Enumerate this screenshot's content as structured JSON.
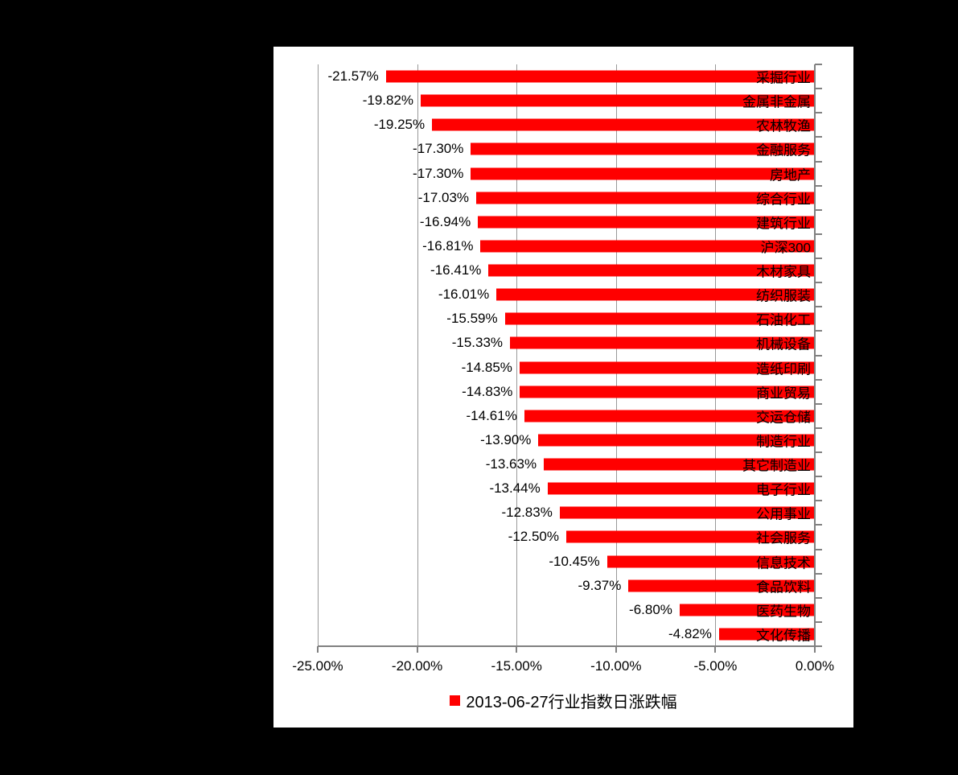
{
  "chart_data": {
    "type": "bar",
    "orientation": "horizontal",
    "title": "",
    "legend_label": "2013-06-27行业指数日涨跌幅",
    "legend_position": "bottom",
    "grid": "vertical gridlines every 5%",
    "xlim": [
      -25,
      0
    ],
    "x_tick_labels": [
      "-25.00%",
      "-20.00%",
      "-15.00%",
      "-10.00%",
      "-5.00%",
      "0.00%"
    ],
    "categories": [
      "采掘行业",
      "金属非金属",
      "农林牧渔",
      "金融服务",
      "房地产",
      "综合行业",
      "建筑行业",
      "沪深300",
      "木材家具",
      "纺织服装",
      "石油化工",
      "机械设备",
      "造纸印刷",
      "商业贸易",
      "交运仓储",
      "制造行业",
      "其它制造业",
      "电子行业",
      "公用事业",
      "社会服务",
      "信息技术",
      "食品饮料",
      "医药生物",
      "文化传播"
    ],
    "values": [
      -21.57,
      -19.82,
      -19.25,
      -17.3,
      -17.3,
      -17.03,
      -16.94,
      -16.81,
      -16.41,
      -16.01,
      -15.59,
      -15.33,
      -14.85,
      -14.83,
      -14.61,
      -13.9,
      -13.63,
      -13.44,
      -12.83,
      -12.5,
      -10.45,
      -9.37,
      -6.8,
      -4.82
    ],
    "value_labels": [
      "-21.57%",
      "-19.82%",
      "-19.25%",
      "-17.30%",
      "-17.30%",
      "-17.03%",
      "-16.94%",
      "-16.81%",
      "-16.41%",
      "-16.01%",
      "-15.59%",
      "-15.33%",
      "-14.85%",
      "-14.83%",
      "-14.61%",
      "-13.90%",
      "-13.63%",
      "-13.44%",
      "-12.83%",
      "-12.50%",
      "-10.45%",
      "-9.37%",
      "-6.80%",
      "-4.82%"
    ],
    "colors": {
      "bar": "#FF0000",
      "gridline": "#999999",
      "axis": "#808080",
      "text": "#000000",
      "panel_background": "#FFFFFF",
      "page_background": "#000000"
    }
  }
}
